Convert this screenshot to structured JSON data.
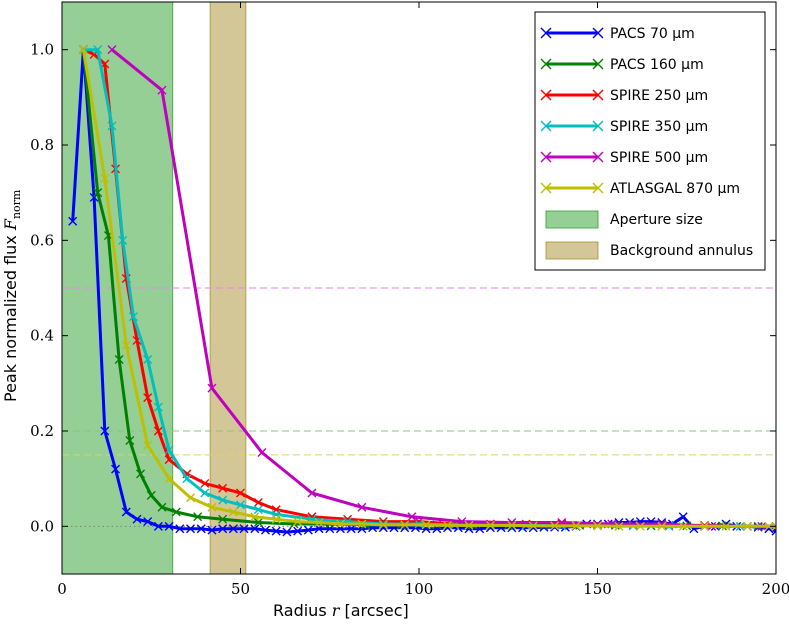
{
  "chart_data": {
    "type": "line",
    "xlabel": "Radius r [arcsec]",
    "ylabel": "Peak normalized flux F_norm",
    "xlim": [
      0,
      200
    ],
    "ylim": [
      -0.1,
      1.1
    ],
    "xticks": [
      0,
      50,
      100,
      150,
      200
    ],
    "yticks": [
      0.0,
      0.2,
      0.4,
      0.6,
      0.8,
      1.0
    ],
    "xtick_labels": [
      "0",
      "50",
      "100",
      "150",
      "200"
    ],
    "ytick_labels": [
      "0.0",
      "0.2",
      "0.4",
      "0.6",
      "0.8",
      "1.0"
    ],
    "grid": false,
    "legend_position": "top-right",
    "series": [
      {
        "name": "PACS 70 μm",
        "color": "#0000ff",
        "x": [
          3,
          6,
          9,
          12,
          15,
          18,
          21,
          24,
          27,
          30,
          33,
          36,
          39,
          42,
          45,
          48,
          51,
          54,
          57,
          60,
          63,
          66,
          69,
          72,
          75,
          78,
          81,
          84,
          87,
          90,
          93,
          96,
          99,
          102,
          105,
          108,
          111,
          114,
          117,
          120,
          123,
          126,
          129,
          132,
          135,
          138,
          141,
          144,
          147,
          150,
          153,
          156,
          159,
          162,
          165,
          168,
          171,
          174,
          177,
          180,
          183,
          186,
          189,
          192,
          195,
          198,
          200
        ],
        "y": [
          0.64,
          1.0,
          0.69,
          0.2,
          0.12,
          0.03,
          0.015,
          0.01,
          0.0,
          0.0,
          -0.005,
          -0.005,
          -0.005,
          -0.008,
          -0.005,
          -0.005,
          -0.005,
          -0.005,
          -0.008,
          -0.01,
          -0.012,
          -0.01,
          -0.008,
          -0.005,
          -0.005,
          -0.005,
          -0.005,
          -0.005,
          -0.003,
          -0.003,
          -0.003,
          -0.003,
          -0.003,
          -0.005,
          -0.005,
          -0.003,
          -0.003,
          -0.005,
          -0.005,
          -0.003,
          -0.003,
          -0.003,
          -0.003,
          -0.003,
          -0.002,
          -0.002,
          -0.002,
          0.0,
          0.005,
          0.005,
          0.005,
          0.008,
          0.008,
          0.01,
          0.01,
          0.008,
          0.005,
          0.02,
          -0.005,
          0.0,
          0.0,
          0.005,
          0.0,
          0.0,
          -0.002,
          -0.005,
          -0.01
        ]
      },
      {
        "name": "PACS 160 μm",
        "color": "#008000",
        "x": [
          6,
          10,
          13,
          16,
          19,
          22,
          25,
          28,
          32,
          38,
          45,
          55,
          65,
          75,
          85,
          95,
          105,
          115,
          125,
          135,
          145,
          155,
          165,
          175,
          185,
          195,
          200
        ],
        "y": [
          1.0,
          0.7,
          0.61,
          0.35,
          0.18,
          0.11,
          0.065,
          0.04,
          0.03,
          0.02,
          0.015,
          0.008,
          0.005,
          0.005,
          0.003,
          0.003,
          0.003,
          0.003,
          0.002,
          0.002,
          0.002,
          0.002,
          0.001,
          0.001,
          0.001,
          0.0,
          0.0
        ]
      },
      {
        "name": "SPIRE 250 μm",
        "color": "#ff0000",
        "x": [
          6,
          9,
          12,
          15,
          18,
          21,
          24,
          27,
          30,
          35,
          40,
          45,
          50,
          55,
          60,
          70,
          80,
          90,
          100,
          110,
          120,
          130,
          140,
          150,
          160,
          170,
          180,
          190,
          200
        ],
        "y": [
          1.0,
          0.99,
          0.97,
          0.75,
          0.52,
          0.39,
          0.27,
          0.2,
          0.14,
          0.11,
          0.09,
          0.08,
          0.07,
          0.05,
          0.035,
          0.02,
          0.015,
          0.01,
          0.01,
          0.005,
          0.005,
          0.005,
          0.005,
          0.003,
          0.003,
          0.002,
          0.002,
          0.0,
          0.0
        ]
      },
      {
        "name": "SPIRE 350 μm",
        "color": "#00bfbf",
        "x": [
          6,
          10,
          14,
          17,
          20,
          24,
          27,
          30,
          35,
          40,
          45,
          50,
          55,
          60,
          70,
          80,
          90,
          100,
          110,
          120,
          130,
          140,
          150,
          160,
          170,
          180,
          190,
          200
        ],
        "y": [
          1.0,
          1.0,
          0.84,
          0.6,
          0.44,
          0.35,
          0.25,
          0.16,
          0.1,
          0.07,
          0.055,
          0.045,
          0.035,
          0.025,
          0.015,
          0.01,
          0.005,
          0.005,
          0.003,
          0.002,
          0.002,
          0.001,
          0.001,
          0.001,
          0.0,
          0.0,
          0.0,
          0.0
        ]
      },
      {
        "name": "SPIRE 500 μm",
        "color": "#bf00bf",
        "x": [
          14,
          28,
          42,
          56,
          70,
          84,
          98,
          112,
          126,
          140,
          154,
          168,
          182,
          196,
          200
        ],
        "y": [
          1.0,
          0.915,
          0.29,
          0.155,
          0.07,
          0.04,
          0.02,
          0.01,
          0.008,
          0.008,
          0.005,
          0.005,
          0.0,
          0.0,
          0.0
        ]
      },
      {
        "name": "ATLASGAL 870 μm",
        "color": "#bfbf00",
        "x": [
          6,
          12,
          18,
          24,
          30,
          36,
          42,
          48,
          54,
          60,
          66,
          72,
          78,
          84,
          90,
          96,
          102,
          108,
          114,
          120,
          126,
          132,
          138,
          144,
          150,
          156,
          162,
          168,
          174,
          180,
          186,
          192,
          198,
          200
        ],
        "y": [
          1.0,
          0.73,
          0.38,
          0.17,
          0.1,
          0.06,
          0.04,
          0.03,
          0.02,
          0.015,
          0.01,
          0.008,
          0.005,
          0.005,
          0.003,
          0.003,
          0.003,
          0.002,
          0.002,
          0.002,
          0.002,
          0.001,
          0.001,
          0.001,
          0.001,
          0.0,
          0.0,
          0.0,
          0.0,
          0.0,
          0.0,
          0.0,
          0.0,
          0.0
        ]
      }
    ],
    "spans": [
      {
        "name": "Aperture size",
        "x0": 0,
        "x1": 31,
        "color": "#2ca02c",
        "alpha": 0.5
      },
      {
        "name": "Background annulus",
        "x0": 41.5,
        "x1": 51.5,
        "color": "#a89030",
        "alpha": 0.5
      }
    ],
    "hlines": [
      {
        "y": 0.5,
        "color": "#ee82ee",
        "style": "dashed"
      },
      {
        "y": 0.2,
        "color": "#80c880",
        "style": "dashed"
      },
      {
        "y": 0.15,
        "color": "#d8d860",
        "style": "dashed"
      },
      {
        "y": 0.0,
        "color": "#808080",
        "style": "dotted"
      }
    ]
  }
}
